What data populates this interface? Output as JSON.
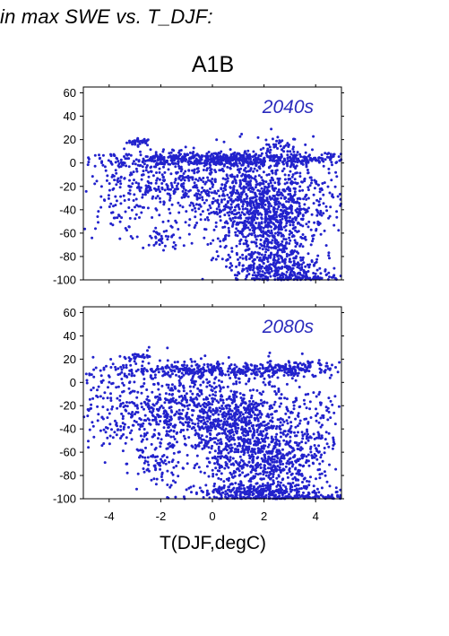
{
  "header": {
    "title": "in max SWE vs. T_DJF:",
    "scenario": "A1B"
  },
  "chart_data": {
    "type": "scatter",
    "xlabel": "T(DJF,degC)",
    "ylabel": "",
    "xlim": [
      -5,
      5
    ],
    "ylim": [
      -100,
      65
    ],
    "x_ticks": [
      -4,
      -2,
      0,
      2,
      4
    ],
    "y_ticks": [
      -100,
      -80,
      -60,
      -40,
      -20,
      0,
      20,
      40,
      60
    ],
    "point_color": "#2222cc",
    "label_color": "#2b2bbd",
    "panels": [
      {
        "label": "2040s",
        "clusters": [
          {
            "cx": -2.8,
            "cy": 18,
            "sx": 0.25,
            "sy": 1.5,
            "n": 35
          },
          {
            "cx": 2.7,
            "cy": 16,
            "sx": 0.3,
            "sy": 3,
            "n": 25
          },
          {
            "cx": 0.5,
            "cy": 3,
            "sx": 2.8,
            "sy": 3,
            "n": 650
          },
          {
            "cx": -3.8,
            "cy": -30,
            "sx": 0.6,
            "sy": 18,
            "n": 90
          },
          {
            "cx": -2.6,
            "cy": -20,
            "sx": 0.5,
            "sy": 12,
            "n": 80
          },
          {
            "cx": -1.9,
            "cy": -65,
            "sx": 0.35,
            "sy": 6,
            "n": 40
          },
          {
            "cx": -0.8,
            "cy": -20,
            "sx": 1.0,
            "sy": 14,
            "n": 280
          },
          {
            "cx": 1.5,
            "cy": -35,
            "sx": 0.9,
            "sy": 22,
            "n": 650
          },
          {
            "cx": 2.5,
            "cy": -50,
            "sx": 0.7,
            "sy": 25,
            "n": 450
          },
          {
            "cx": 2.4,
            "cy": -88,
            "sx": 0.9,
            "sy": 8,
            "n": 250
          },
          {
            "cx": 3.5,
            "cy": -97,
            "sx": 1.0,
            "sy": 2,
            "n": 90
          },
          {
            "cx": 4.0,
            "cy": -30,
            "sx": 0.6,
            "sy": 20,
            "n": 120
          }
        ]
      },
      {
        "label": "2080s",
        "clusters": [
          {
            "cx": -2.8,
            "cy": 22,
            "sx": 0.3,
            "sy": 1.5,
            "n": 30
          },
          {
            "cx": 0.2,
            "cy": 10,
            "sx": 2.5,
            "sy": 3,
            "n": 380
          },
          {
            "cx": 3.5,
            "cy": 13,
            "sx": 0.8,
            "sy": 3,
            "n": 80
          },
          {
            "cx": -4.2,
            "cy": -20,
            "sx": 0.6,
            "sy": 18,
            "n": 80
          },
          {
            "cx": -2.6,
            "cy": -30,
            "sx": 0.8,
            "sy": 22,
            "n": 250
          },
          {
            "cx": -2.0,
            "cy": -70,
            "sx": 0.5,
            "sy": 8,
            "n": 60
          },
          {
            "cx": -0.5,
            "cy": -25,
            "sx": 1.0,
            "sy": 18,
            "n": 400
          },
          {
            "cx": 1.2,
            "cy": -40,
            "sx": 1.0,
            "sy": 22,
            "n": 600
          },
          {
            "cx": 2.2,
            "cy": -70,
            "sx": 1.0,
            "sy": 18,
            "n": 450
          },
          {
            "cx": 2.0,
            "cy": -95,
            "sx": 1.2,
            "sy": 4,
            "n": 300
          },
          {
            "cx": 3.8,
            "cy": -40,
            "sx": 0.8,
            "sy": 25,
            "n": 160
          },
          {
            "cx": 4.3,
            "cy": -98,
            "sx": 0.5,
            "sy": 2,
            "n": 40
          }
        ]
      }
    ]
  }
}
